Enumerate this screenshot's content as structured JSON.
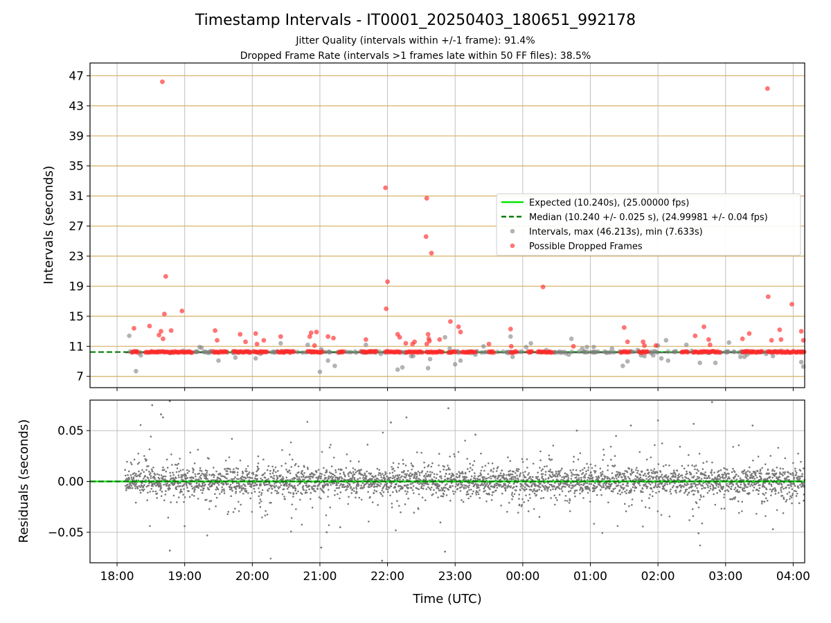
{
  "chart_data": [
    {
      "type": "scatter",
      "title": "Timestamp Intervals - IT0001_20250403_180651_992178",
      "subtitle_lines": [
        "Jitter Quality (intervals within +/-1 frame): 91.4%",
        "Dropped Frame Rate (intervals >1 frames late within 50 FF files): 38.5%"
      ],
      "ylabel": "Intervals (seconds)",
      "xlabel": "",
      "xlim_hours": [
        17.6,
        28.17
      ],
      "ylim": [
        5.5,
        48.7
      ],
      "yticks": [
        7,
        11,
        15,
        19,
        23,
        27,
        31,
        35,
        39,
        43,
        47
      ],
      "ytick_labels": [
        "7",
        "11",
        "15",
        "19",
        "23",
        "27",
        "31",
        "35",
        "39",
        "43",
        "47"
      ],
      "xticks_hours": [
        18,
        19,
        20,
        21,
        22,
        23,
        24,
        25,
        26,
        27,
        28
      ],
      "grid": true,
      "horizontal_lines_color": "#d4b062",
      "legend_position": "center-right",
      "legend": [
        {
          "label": "Expected (10.240s), (25.00000 fps)",
          "kind": "solid-line",
          "color": "#00e600"
        },
        {
          "label": "Median (10.240 +/- 0.025 s), (24.99981 +/- 0.04 fps)",
          "kind": "dashed-line",
          "color": "#007a00"
        },
        {
          "label": "Intervals, max (46.213s), min (7.633s)",
          "kind": "marker",
          "color": "#808080"
        },
        {
          "label": "Possible Dropped Frames",
          "kind": "marker",
          "color": "#ff2a2a"
        }
      ],
      "expected_interval": 10.24,
      "median_interval": 10.24,
      "series": [
        {
          "name": "Possible Dropped Frames",
          "color": "#ff2a2a",
          "x_hours": [
            18.25,
            18.48,
            18.62,
            18.65,
            18.68,
            18.7,
            18.8,
            18.96,
            18.67,
            18.72,
            19.45,
            19.48,
            19.82,
            19.9,
            20.05,
            20.07,
            20.17,
            20.42,
            20.85,
            20.87,
            20.92,
            20.95,
            21.12,
            21.2,
            21.68,
            21.98,
            22.0,
            22.15,
            22.18,
            22.27,
            22.37,
            22.4,
            22.58,
            22.6,
            22.62,
            22.65,
            22.77,
            22.93,
            23.05,
            23.08,
            23.5,
            23.82,
            23.83,
            24.3,
            24.75,
            25.5,
            25.55,
            25.78,
            25.8,
            25.97,
            26.55,
            26.68,
            26.75,
            26.77,
            27.25,
            27.35,
            27.62,
            27.63,
            27.68,
            27.8,
            27.82,
            27.98,
            28.12,
            28.15,
            21.97,
            22.58,
            22.57,
            22.61
          ],
          "values": [
            13.4,
            13.7,
            12.5,
            13.0,
            12.0,
            15.3,
            13.1,
            15.7,
            46.2,
            20.3,
            13.1,
            11.8,
            12.6,
            11.6,
            12.7,
            11.3,
            11.8,
            12.3,
            12.3,
            12.8,
            11.1,
            12.9,
            12.3,
            12.1,
            11.9,
            16.0,
            19.6,
            12.6,
            12.2,
            11.4,
            11.3,
            11.6,
            11.3,
            12.6,
            11.7,
            23.4,
            11.9,
            14.3,
            13.6,
            12.9,
            11.3,
            13.3,
            11.0,
            18.9,
            11.0,
            13.5,
            11.6,
            11.6,
            11.1,
            11.1,
            12.4,
            13.6,
            11.9,
            11.2,
            12.0,
            12.7,
            45.3,
            17.6,
            11.8,
            13.2,
            11.9,
            16.6,
            13.0,
            11.8,
            32.1,
            30.7,
            25.6,
            12.0
          ],
          "baseline_value": 10.25,
          "baseline_segments_hours": [
            [
              18.22,
              18.32
            ],
            [
              18.42,
              18.62
            ],
            [
              18.64,
              19.12
            ],
            [
              19.42,
              19.62
            ],
            [
              19.72,
              19.98
            ],
            [
              20.02,
              20.22
            ],
            [
              20.38,
              20.62
            ],
            [
              20.82,
              21.05
            ],
            [
              21.28,
              21.36
            ],
            [
              21.62,
              21.85
            ],
            [
              21.97,
              22.2
            ],
            [
              22.28,
              22.52
            ],
            [
              22.58,
              22.82
            ],
            [
              22.9,
              23.02
            ],
            [
              23.1,
              23.3
            ],
            [
              23.5,
              23.58
            ],
            [
              23.82,
              23.92
            ],
            [
              24.08,
              24.14
            ],
            [
              24.22,
              24.45
            ],
            [
              25.45,
              25.58
            ],
            [
              25.72,
              25.85
            ],
            [
              26.35,
              26.45
            ],
            [
              26.52,
              26.92
            ],
            [
              27.25,
              27.55
            ],
            [
              27.62,
              28.17
            ]
          ]
        },
        {
          "name": "Intervals",
          "color": "#808080",
          "x_hours": [
            18.18,
            18.28,
            18.35,
            18.62,
            18.78,
            18.98,
            19.22,
            19.25,
            19.5,
            19.72,
            19.75,
            20.05,
            20.12,
            20.42,
            20.82,
            21.0,
            21.02,
            21.12,
            21.22,
            21.68,
            21.9,
            22.15,
            22.22,
            22.35,
            22.38,
            22.6,
            22.63,
            22.85,
            22.92,
            23.0,
            23.08,
            23.3,
            23.42,
            23.82,
            23.85,
            24.05,
            24.12,
            24.35,
            24.47,
            24.68,
            24.72,
            24.88,
            24.95,
            25.05,
            25.32,
            25.48,
            25.55,
            25.7,
            25.75,
            25.8,
            25.9,
            25.93,
            26.0,
            26.05,
            26.12,
            26.15,
            26.42,
            26.5,
            26.62,
            26.85,
            27.05,
            27.22,
            27.28,
            27.32,
            27.6,
            27.7,
            27.82,
            28.12,
            28.15
          ],
          "values": [
            12.4,
            7.7,
            9.8,
            10.3,
            10.1,
            10.4,
            10.9,
            10.8,
            9.1,
            10.1,
            9.5,
            9.4,
            10.0,
            11.4,
            11.2,
            7.6,
            10.6,
            9.1,
            8.4,
            11.2,
            10.0,
            7.9,
            8.2,
            9.7,
            9.7,
            8.1,
            9.3,
            12.2,
            10.7,
            8.6,
            9.1,
            9.9,
            11.0,
            12.3,
            9.6,
            10.9,
            11.4,
            10.5,
            10.2,
            9.9,
            12.0,
            10.7,
            10.9,
            10.9,
            10.7,
            8.4,
            9.0,
            10.5,
            9.8,
            9.7,
            10.1,
            9.8,
            11.1,
            9.4,
            11.8,
            9.1,
            11.2,
            10.4,
            8.8,
            8.8,
            11.5,
            9.6,
            9.6,
            9.9,
            10.0,
            9.7,
            10.4,
            8.9,
            8.3
          ]
        }
      ]
    },
    {
      "type": "scatter",
      "title": "",
      "xlabel": "Time (UTC)",
      "ylabel": "Residuals (seconds)",
      "xlim_hours": [
        17.6,
        28.17
      ],
      "ylim": [
        -0.08,
        0.08
      ],
      "yticks": [
        -0.05,
        0.0,
        0.05
      ],
      "ytick_labels": [
        "−0.05",
        "0.00",
        "0.05"
      ],
      "xticks_hours": [
        18,
        19,
        20,
        21,
        22,
        23,
        24,
        25,
        26,
        27,
        28
      ],
      "xtick_labels": [
        "18:00",
        "19:00",
        "20:00",
        "21:00",
        "22:00",
        "23:00",
        "00:00",
        "01:00",
        "02:00",
        "03:00",
        "04:00"
      ],
      "grid": true,
      "zero_line_colors": {
        "solid": "#00e600",
        "dashed": "#007a00"
      },
      "series": [
        {
          "name": "Residuals",
          "color": "#777777",
          "x_start_hours": 18.12,
          "x_end_hours": 28.17,
          "point_count": 3500,
          "core_std": 0.0065,
          "outer_std": 0.018,
          "outer_fraction": 0.18,
          "x_hours": [
            18.52,
            18.65,
            18.68,
            18.78,
            21.02,
            21.92,
            22.28,
            22.85,
            22.9,
            26.6,
            26.8,
            27.7,
            18.78,
            19.0,
            21.1,
            21.3,
            22.05,
            23.3,
            24.8,
            25.6,
            26.0,
            27.4
          ],
          "values": [
            0.075,
            0.066,
            0.063,
            0.079,
            -0.065,
            -0.078,
            0.063,
            -0.069,
            0.072,
            -0.051,
            0.078,
            -0.047,
            -0.068,
            -0.044,
            -0.05,
            -0.045,
            0.058,
            0.046,
            0.05,
            0.055,
            0.06,
            0.055
          ]
        }
      ]
    }
  ]
}
